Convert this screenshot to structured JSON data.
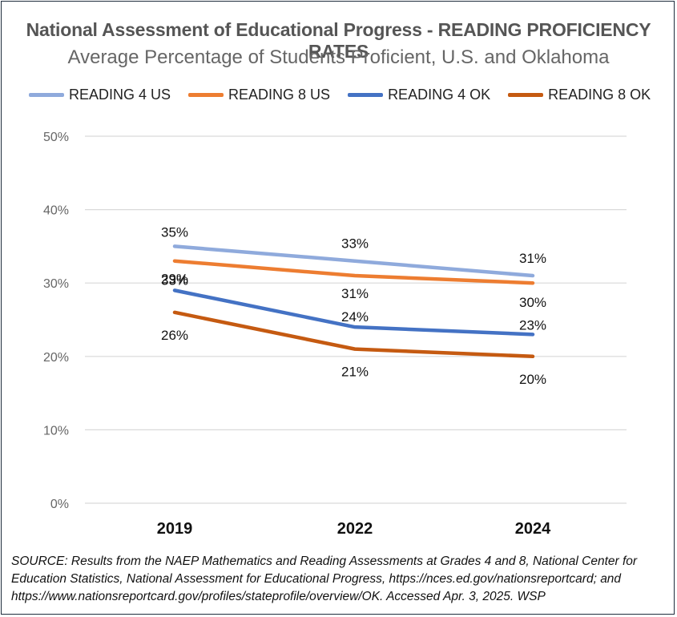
{
  "chart_data": {
    "type": "line",
    "title": "National Assessment of Educational Progress - READING PROFICIENCY RATES",
    "subtitle": "Average Percentage of Students Proficient, U.S. and Oklahoma",
    "categories": [
      "2019",
      "2022",
      "2024"
    ],
    "ylim": [
      0,
      50
    ],
    "yticks": [
      0,
      10,
      20,
      30,
      40,
      50
    ],
    "ytick_labels": [
      "0%",
      "10%",
      "20%",
      "30%",
      "40%",
      "50%"
    ],
    "grid": true,
    "legend_position": "top",
    "series": [
      {
        "name": "READING 4 US",
        "values": [
          35,
          33,
          31
        ],
        "labels": [
          "35%",
          "33%",
          "31%"
        ],
        "color": "#8faadc"
      },
      {
        "name": "READING 8 US",
        "values": [
          33,
          31,
          30
        ],
        "labels": [
          "33%",
          "31%",
          "30%"
        ],
        "color": "#ed7d31"
      },
      {
        "name": "READING 4 OK",
        "values": [
          29,
          24,
          23
        ],
        "labels": [
          "29%",
          "24%",
          "23%"
        ],
        "color": "#4472c4"
      },
      {
        "name": "READING 8 OK",
        "values": [
          26,
          21,
          20
        ],
        "labels": [
          "26%",
          "21%",
          "20%"
        ],
        "color": "#c55a11"
      }
    ]
  },
  "source": "SOURCE: Results from the NAEP Mathematics and Reading Assessments at Grades 4 and 8, National Center for Education Statistics, National Assessment for Educational Progress, https://nces.ed.gov/nationsreportcard; and https://www.nationsreportcard.gov/profiles/stateprofile/overview/OK. Accessed Apr. 3, 2025. WSP"
}
